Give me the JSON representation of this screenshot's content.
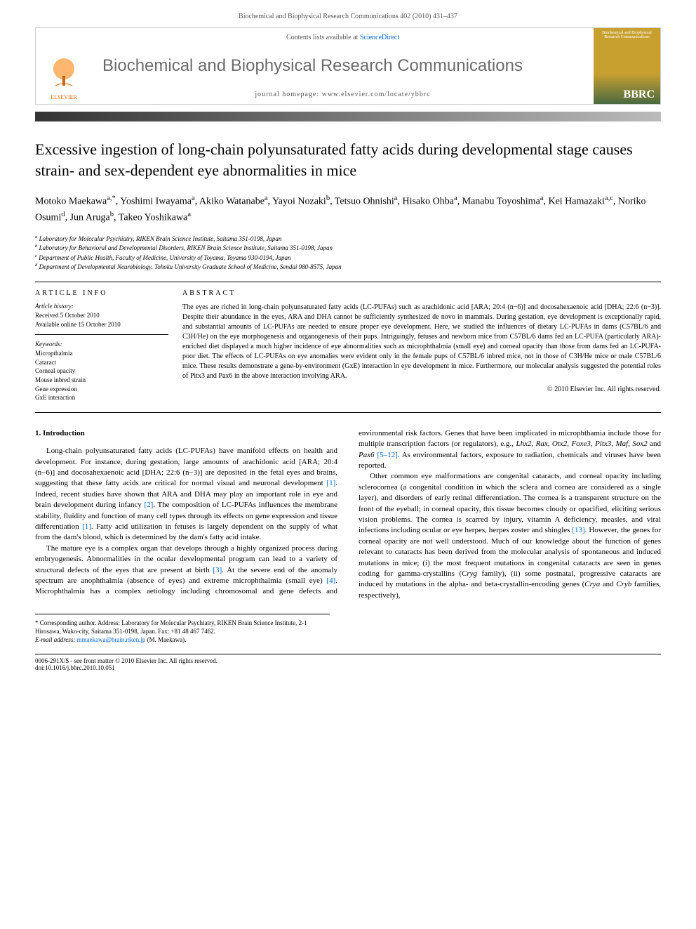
{
  "header": {
    "running_head": "Biochemical and Biophysical Research Communications 402 (2010) 431–437"
  },
  "banner": {
    "publisher": "ELSEVIER",
    "contents_prefix": "Contents lists available at ",
    "contents_link": "ScienceDirect",
    "journal_title": "Biochemical and Biophysical Research Communications",
    "homepage_label": "journal homepage: www.elsevier.com/locate/ybbrc",
    "cover_acronym": "BBRC",
    "cover_top_text": "Biochemical and Biophysical Research Communications"
  },
  "article": {
    "title": "Excessive ingestion of long-chain polyunsaturated fatty acids during developmental stage causes strain- and sex-dependent eye abnormalities in mice",
    "authors_html": "Motoko Maekawa<sup>a,*</sup>, Yoshimi Iwayama<sup>a</sup>, Akiko Watanabe<sup>a</sup>, Yayoi Nozaki<sup>b</sup>, Tetsuo Ohnishi<sup>a</sup>, Hisako Ohba<sup>a</sup>, Manabu Toyoshima<sup>a</sup>, Kei Hamazaki<sup>a,c</sup>, Noriko Osumi<sup>d</sup>, Jun Aruga<sup>b</sup>, Takeo Yoshikawa<sup>a</sup>",
    "affiliations": [
      "a Laboratory for Molecular Psychiatry, RIKEN Brain Science Institute, Saitama 351-0198, Japan",
      "b Laboratory for Behavioral and Developmental Disorders, RIKEN Brain Science Institute, Saitama 351-0198, Japan",
      "c Department of Public Health, Faculty of Medicine, University of Toyama, Toyama 930-0194, Japan",
      "d Department of Developmental Neurobiology, Tohoku University Graduate School of Medicine, Sendai 980-8575, Japan"
    ]
  },
  "info": {
    "heading": "ARTICLE INFO",
    "history_label": "Article history:",
    "received": "Received 5 October 2010",
    "online": "Available online 15 October 2010",
    "keywords_label": "Keywords:",
    "keywords": [
      "Micropthalmia",
      "Cataract",
      "Corneal opacity",
      "Mouse inbred strain",
      "Gene expression",
      "GxE interaction"
    ]
  },
  "abstract": {
    "heading": "ABSTRACT",
    "text": "The eyes are riched in long-chain polyunsaturated fatty acids (LC-PUFAs) such as arachidonic acid [ARA; 20:4 (n−6)] and docosahexaenoic acid [DHA; 22:6 (n−3)]. Despite their abundance in the eyes, ARA and DHA cannot be sufficiently synthesized de novo in mammals. During gestation, eye development is exceptionally rapid, and substantial amounts of LC-PUFAs are needed to ensure proper eye development. Here, we studied the influences of dietary LC-PUFAs in dams (C57BL/6 and C3H/He) on the eye morphogenesis and organogenesis of their pups. Intriguingly, fetuses and newborn mice from C57BL/6 dams fed an LC-PUFA (particularly ARA)-enriched diet displayed a much higher incidence of eye abnormalities such as microphthalmia (small eye) and corneal opacity than those from dams fed an LC-PUFA-poor diet. The effects of LC-PUFAs on eye anomalies were evident only in the female pups of C57BL/6 inbred mice, not in those of C3H/He mice or male C57BL/6 mice. These results demonstrate a gene-by-environment (GxE) interaction in eye development in mice. Furthermore, our molecular analysis suggested the potential roles of Pitx3 and Pax6 in the above interaction involving ARA.",
    "copyright": "© 2010 Elsevier Inc. All rights reserved."
  },
  "body": {
    "section_heading": "1. Introduction",
    "p1": "Long-chain polyunsaturated fatty acids (LC-PUFAs) have manifold effects on health and development. For instance, during gestation, large amounts of arachidonic acid [ARA; 20:4 (n−6)] and docosahexaenoic acid [DHA; 22:6 (n−3)] are deposited in the fetal eyes and brains, suggesting that these fatty acids are critical for normal visual and neuronal development [1]. Indeed, recent studies have shown that ARA and DHA may play an important role in eye and brain development during infancy [2]. The composition of LC-PUFAs influences the membrane stability, fluidity and function of many cell types through its effects on gene expression and tissue differentiation [1]. Fatty acid utilization in fetuses is largely dependent on the supply of what from the dam's blood, which is determined by the dam's fatty acid intake.",
    "p2": "The mature eye is a complex organ that develops through a highly organized process during embryogenesis. Abnormalities in the ocular developmental program can lead to a variety of structural defects of the eyes that are present at birth [3]. At the severe end of the anomaly spectrum are anophthalmia (absence of eyes) and extreme microphthalmia (small eye) [4]. Microphthalmia has a complex aetiology including chromosomal and gene defects and environmental risk factors. Genes that have been implicated in microphthamia include those for multiple transcription factors (or regulators), e.g., Lhx2, Rax, Otx2, Foxe3, Pitx3, Maf, Sox2 and Pax6 [5–12]. As environmental factors, exposure to radiation, chemicals and viruses have been reported.",
    "p3": "Other common eye malformations are congenital cataracts, and corneal opacity including sclerocornea (a congenital condition in which the sclera and cornea are considered as a single layer), and disorders of early retinal differentiation. The cornea is a transparent structure on the front of the eyeball; in corneal opacity, this tissue becomes cloudy or opacified, eliciting serious vision problems. The cornea is scarred by injury, vitamin A deficiency, measles, and viral infections including ocular or eye herpes, herpes zoster and shingles [13]. However, the genes for corneal opacity are not well understood. Much of our knowledge about the function of genes relevant to cataracts has been derived from the molecular analysis of spontaneous and induced mutations in mice; (i) the most frequent mutations in congenital cataracts are seen in genes coding for gamma-crystallins (Cryg family), (ii) some postnatal, progressive cataracts are induced by mutations in the alpha- and beta-crystallin-encoding genes (Crya and Cryb families, respectively),"
  },
  "footnote": {
    "corresponding_label": "* Corresponding author. Address: Laboratory for Molecular Psychiatry, RIKEN Brain Science Institute, 2-1 Hirosawa, Wako-city, Saitama 351-0198, Japan. Fax: +81 48 467 7462.",
    "email_label": "E-mail address:",
    "email": "mmaekawa@brain.riken.jp",
    "email_name": "(M. Maekawa)."
  },
  "bottom": {
    "left1": "0006-291X/$ - see front matter © 2010 Elsevier Inc. All rights reserved.",
    "left2": "doi:10.1016/j.bbrc.2010.10.051"
  },
  "colors": {
    "link": "#0066cc",
    "banner_gold": "#c8a030",
    "banner_green": "#4a6a40",
    "elsevier_orange": "#ff6600",
    "journal_title_gray": "#6b6b6b"
  }
}
